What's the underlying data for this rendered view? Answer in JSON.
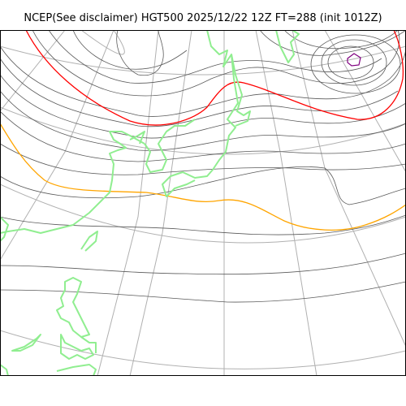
{
  "map": {
    "title": "NCEP(See disclaimer) HGT500 2025/12/22 12Z FT=288 (init 1012Z)",
    "projection": "polar stereographic",
    "field": "500 hPa geopotential height",
    "colors": {
      "contour": "#5a5a5a",
      "graticule": "#b0b0b0",
      "coastline": "#90ee90",
      "highlight_contour_red": "#ff0000",
      "highlight_contour_orange": "#ffa500",
      "closed_contour_purple": "#800080",
      "frame": "#000000",
      "background": "#ffffff"
    }
  }
}
